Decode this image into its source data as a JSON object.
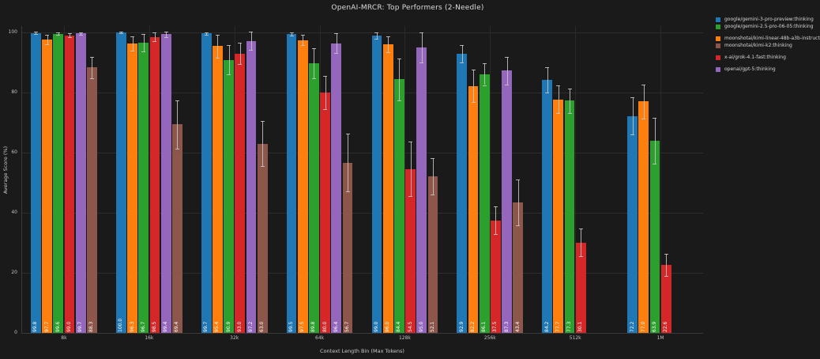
{
  "figure": {
    "title": "OpenAI-MRCR: Top Performers (2-Needle)"
  },
  "chart_data": {
    "type": "bar",
    "title": "OpenAI-MRCR: Top Performers (2-Needle)",
    "xlabel": "Context Length Bin (Max Tokens)",
    "ylabel": "Average Score (%)",
    "ylim": [
      0,
      100
    ],
    "yticks": [
      0,
      20,
      40,
      60,
      80,
      100
    ],
    "categories": [
      "8k",
      "16k",
      "32k",
      "64k",
      "128k",
      "256k",
      "512k",
      "1M"
    ],
    "grid": true,
    "background": "#1a1a1a",
    "legend_position": "outside-top-right",
    "series": [
      {
        "name": "google/gemini-3-pro-preview:thinking",
        "color": "#1f77b4",
        "values": [
          99.8,
          100.0,
          99.7,
          99.5,
          99.0,
          92.9,
          84.2,
          72.2
        ],
        "errors": [
          0.4,
          0.2,
          0.4,
          0.6,
          1.1,
          2.8,
          4.3,
          6.2
        ]
      },
      {
        "name": "moonshotai/kimi-linear-48b-a3b-instruct",
        "color": "#ff7f0e",
        "values": [
          97.7,
          96.3,
          95.4,
          97.5,
          96.0,
          82.2,
          77.7,
          77.0
        ],
        "errors": [
          1.6,
          2.4,
          3.9,
          1.6,
          2.6,
          5.4,
          4.6,
          5.6
        ]
      },
      {
        "name": "google/gemini-2.5-pro-06-05:thinking",
        "color": "#2ca02c",
        "values": [
          99.6,
          96.7,
          90.9,
          89.8,
          84.4,
          86.1,
          77.3,
          63.9
        ],
        "errors": [
          0.5,
          2.9,
          4.9,
          5.0,
          7.0,
          3.6,
          4.1,
          7.6
        ]
      },
      {
        "name": "x-ai/grok-4.1-fast:thinking",
        "color": "#d62728",
        "values": [
          99.0,
          98.5,
          93.0,
          80.0,
          54.5,
          37.5,
          30.1,
          22.6
        ],
        "errors": [
          0.7,
          1.5,
          3.6,
          5.6,
          9.1,
          4.6,
          4.6,
          3.6
        ]
      },
      {
        "name": "openai/gpt-5:thinking",
        "color": "#9467bd",
        "values": [
          99.7,
          99.4,
          97.2,
          96.4,
          95.0,
          87.3,
          null,
          null
        ],
        "errors": [
          0.4,
          0.9,
          3.1,
          3.3,
          5.1,
          4.6,
          null,
          null
        ]
      },
      {
        "name": "moonshotai/kimi-k2:thinking",
        "color": "#8c564b",
        "values": [
          88.3,
          69.4,
          63.0,
          56.7,
          52.1,
          43.4,
          null,
          null
        ],
        "errors": [
          3.6,
          8.1,
          7.6,
          9.6,
          6.1,
          7.6,
          null,
          null
        ]
      }
    ],
    "legend_groups": [
      [
        {
          "label": "google/gemini-3-pro-preview:thinking",
          "color": "#1f77b4"
        },
        {
          "label": "google/gemini-2.5-pro-06-05:thinking",
          "color": "#2ca02c"
        }
      ],
      [
        {
          "label": "moonshotai/kimi-linear-48b-a3b-instruct",
          "color": "#ff7f0e"
        },
        {
          "label": "moonshotai/kimi-k2:thinking",
          "color": "#8c564b"
        }
      ],
      [
        {
          "label": "x-ai/grok-4.1-fast:thinking",
          "color": "#d62728"
        }
      ],
      [
        {
          "label": "openai/gpt-5:thinking",
          "color": "#9467bd"
        }
      ]
    ]
  }
}
